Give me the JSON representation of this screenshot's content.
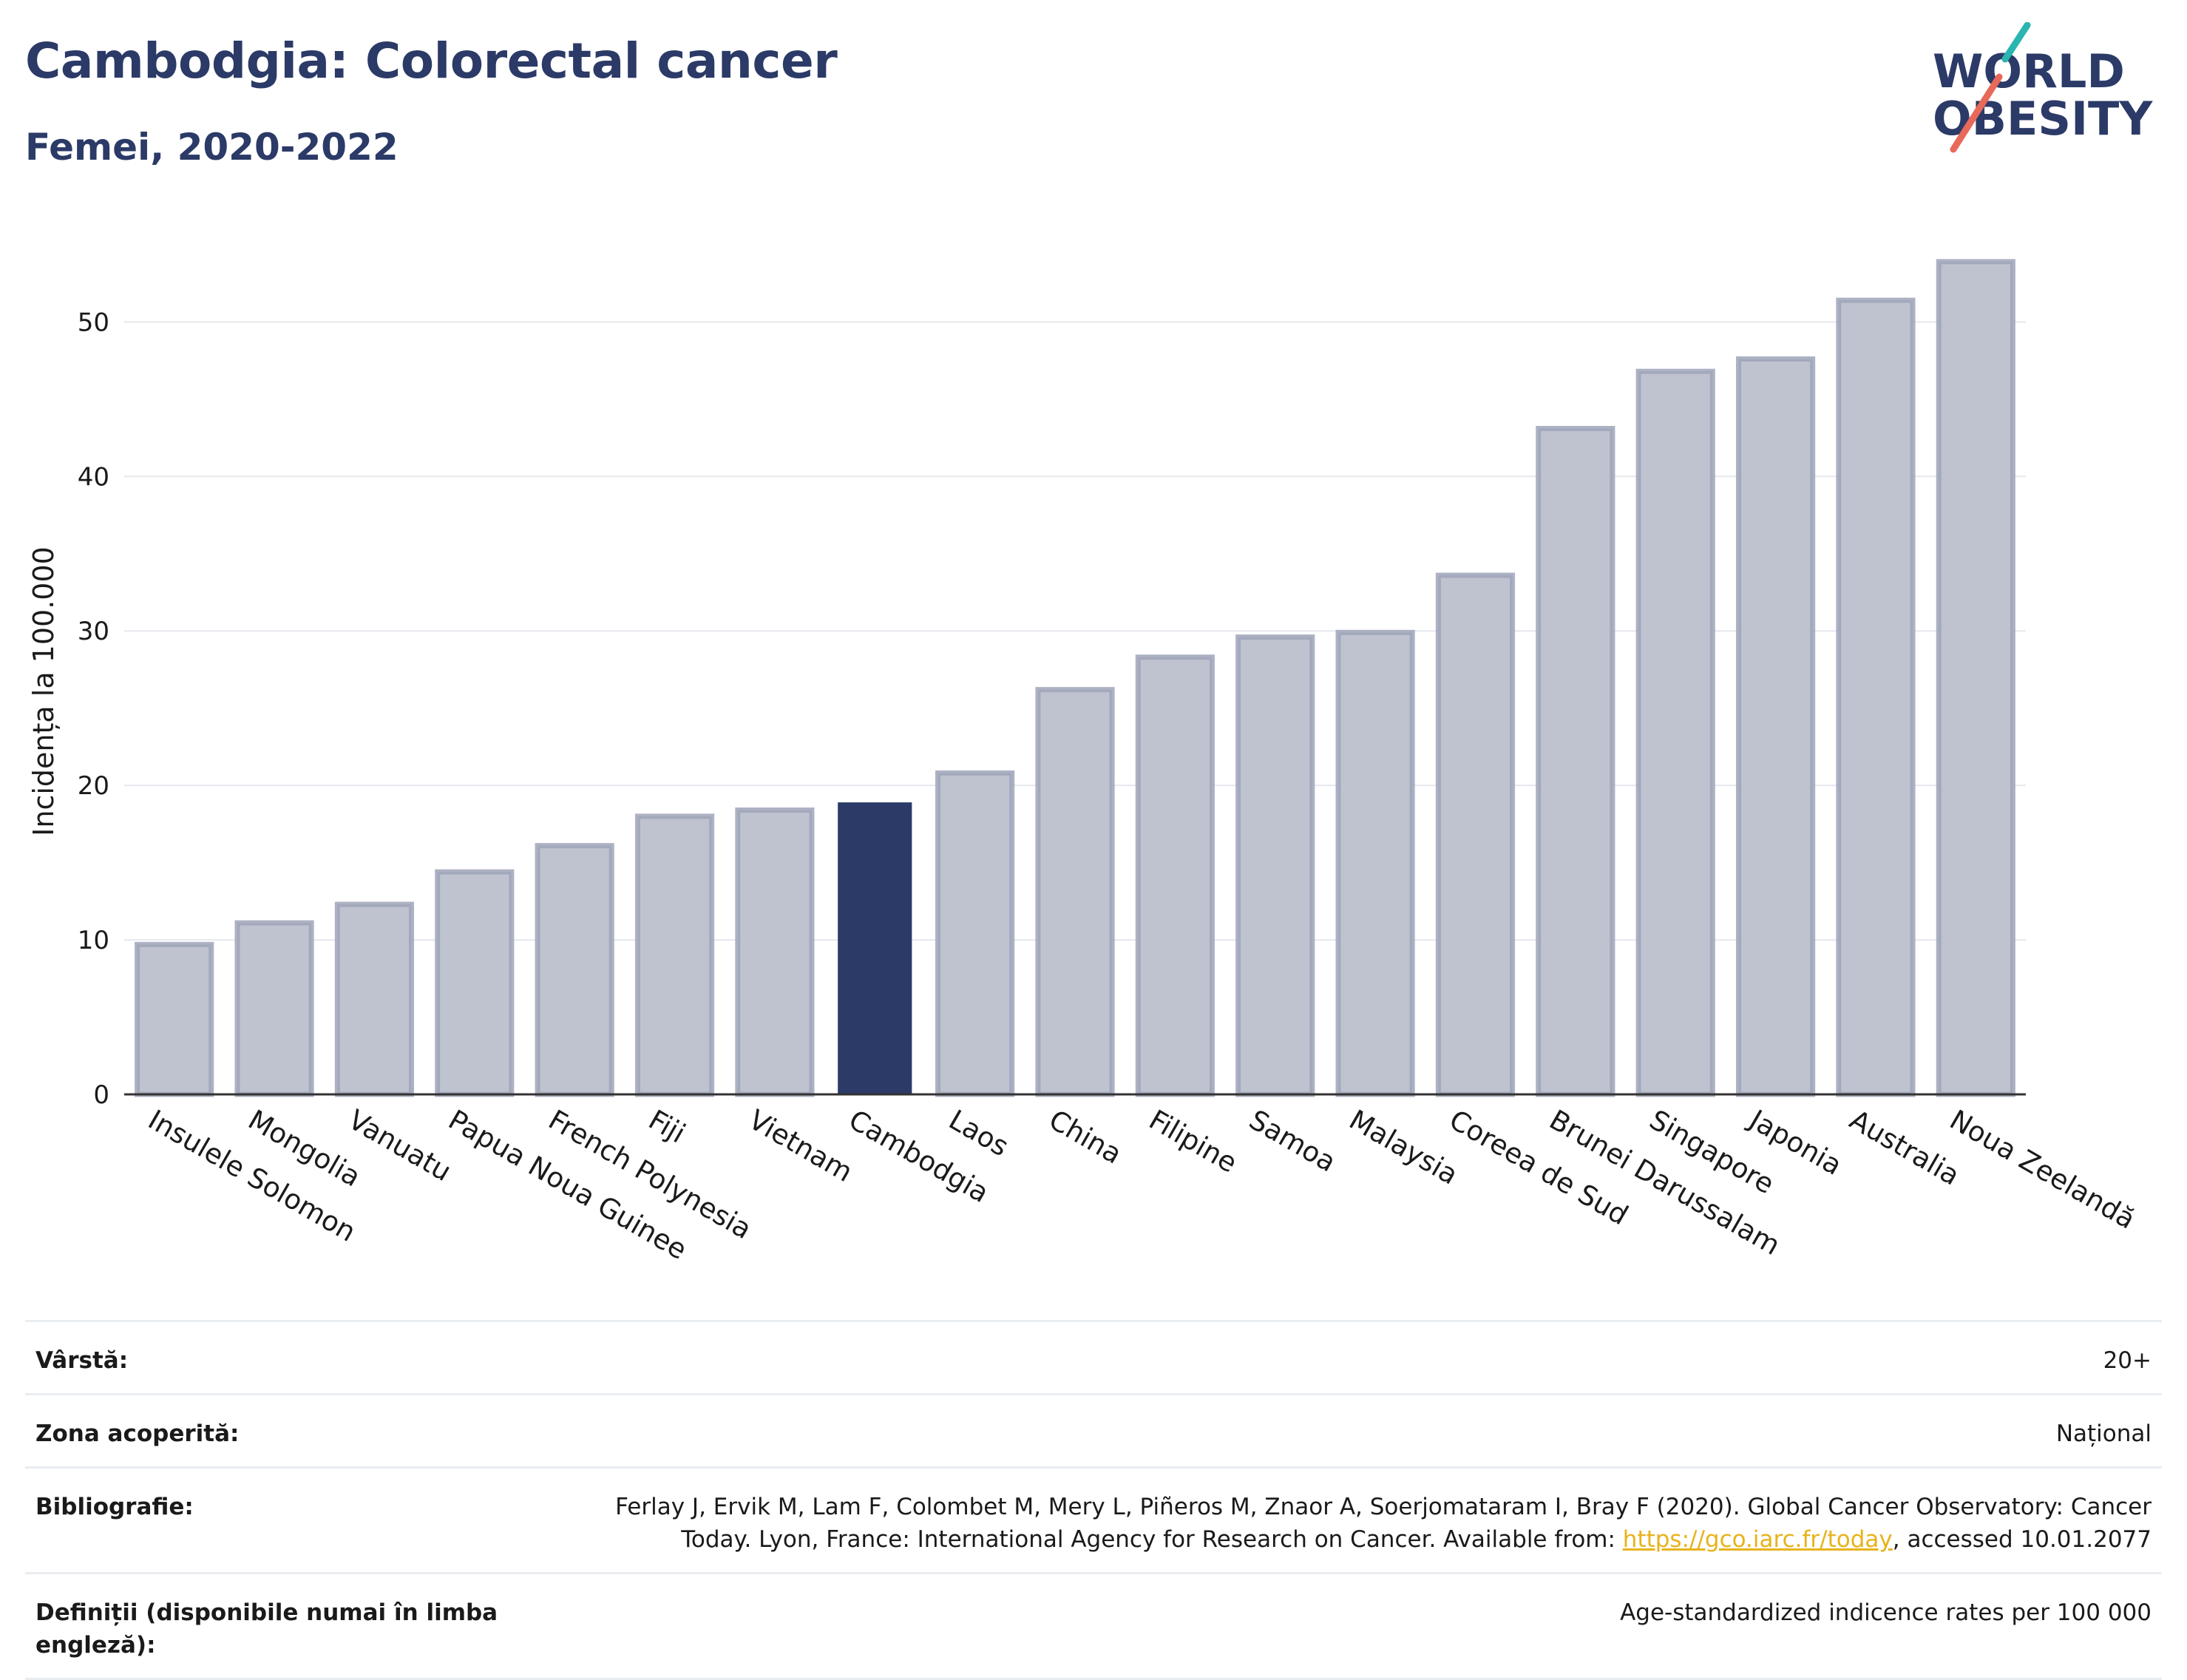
{
  "header": {
    "title": "Cambodgia: Colorectal cancer",
    "subtitle": "Femei, 2020-2022"
  },
  "logo": {
    "line1": "WORLD",
    "line2": "OBESITY",
    "slash_colors": [
      "#2ab5b0",
      "#e8685a"
    ],
    "text_color": "#2b3a67"
  },
  "chart_data": {
    "type": "bar",
    "title": "",
    "xlabel": "",
    "ylabel": "Incidența la 100.000",
    "ylim": [
      0,
      56
    ],
    "yticks": [
      0,
      10,
      20,
      30,
      40,
      50
    ],
    "grid": true,
    "highlight": "Cambodgia",
    "colors": {
      "bar": "#bfc3d0",
      "bar_edge": "#9ea4b8",
      "highlight": "#2b3a67"
    },
    "categories": [
      "Insulele Solomon",
      "Mongolia",
      "Vanuatu",
      "Papua Noua Guinee",
      "French Polynesia",
      "Fiji",
      "Vietnam",
      "Cambodgia",
      "Laos",
      "China",
      "Filipine",
      "Samoa",
      "Malaysia",
      "Coreea de Sud",
      "Brunei Darussalam",
      "Singapore",
      "Japonia",
      "Australia",
      "Noua Zeelandă"
    ],
    "values": [
      9.7,
      11.1,
      12.3,
      14.4,
      16.1,
      18.0,
      18.4,
      18.9,
      20.8,
      26.2,
      28.3,
      29.6,
      29.9,
      33.6,
      43.1,
      46.8,
      47.6,
      51.4,
      53.9
    ]
  },
  "meta": [
    {
      "label": "Vârstă:",
      "value": "20+"
    },
    {
      "label": "Zona acoperită:",
      "value": "Național"
    },
    {
      "label": "Bibliografie:",
      "value_line1": "Ferlay J, Ervik M, Lam F, Colombet M, Mery L, Piñeros M, Znaor A, Soerjomataram I, Bray F (2020). Global Cancer Observatory: Cancer",
      "value_pre": "Today. Lyon, France: International Agency for Research on Cancer. Available from: ",
      "value_link": "https://gco.iarc.fr/today",
      "value_post": ", accessed 10.01.2077"
    },
    {
      "label": "Definiții (disponibile numai în limba engleză):",
      "value": "Age-standardized indicence rates per 100 000"
    }
  ]
}
